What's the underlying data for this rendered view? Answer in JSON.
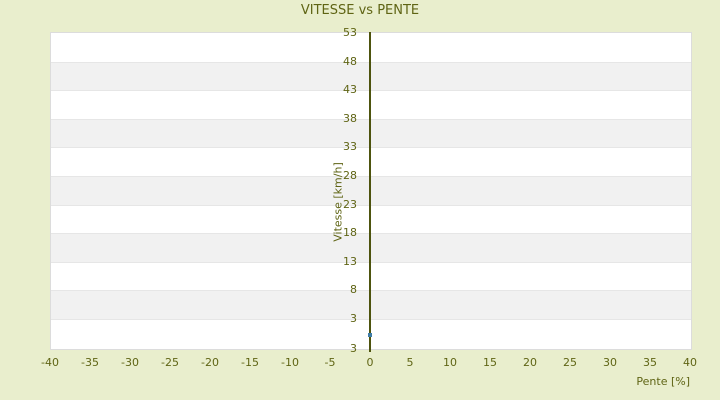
{
  "chart_data": {
    "type": "scatter",
    "title": "VITESSE vs PENTE",
    "xlabel": "Pente [%]",
    "ylabel": "Vitesse [km/h]",
    "xlim": [
      -40,
      40
    ],
    "x_ticks": [
      -40,
      -35,
      -30,
      -25,
      -20,
      -15,
      -10,
      -5,
      0,
      5,
      10,
      15,
      20,
      25,
      30,
      35,
      40
    ],
    "y_ticks": [
      53,
      48,
      43,
      38,
      33,
      28,
      23,
      18,
      13,
      8,
      3
    ],
    "y_tick_step": 5,
    "y_axis_bottom_label": "3",
    "grid": "horizontal-stripes",
    "legend": "none",
    "series": [
      {
        "name": "vitesse",
        "color": "#3e7ca6",
        "points": [
          {
            "x": 0,
            "y": 0
          }
        ]
      }
    ],
    "colors": {
      "background": "#e9eecd",
      "plot_background": "#ffffff",
      "stripe": "#f1f1f1",
      "gridline": "#e6e6e6",
      "plot_border": "#dcdcdc",
      "text": "#5f6414",
      "axis_line": "#4d530e"
    }
  }
}
